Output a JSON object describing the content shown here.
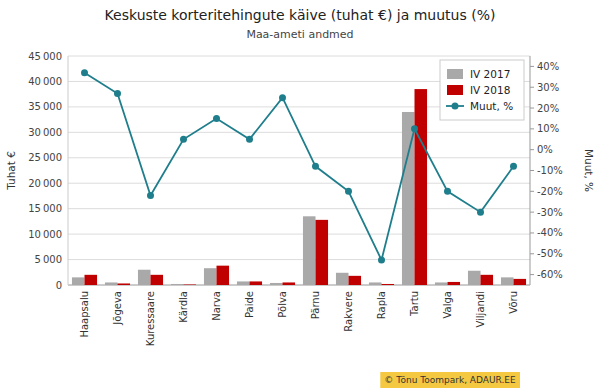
{
  "chart_data": {
    "type": "bar",
    "title": "Keskuste korteritehingute käive (tuhat €) ja muutus (%)",
    "subtitle": "Maa-ameti andmed",
    "ylabel": "Tuhat €",
    "y2label": "Muut, %",
    "annotations": [
      "© Tõnu Toompark, ADAUR.EE"
    ],
    "categories": [
      "Haapsalu",
      "Jõgeva",
      "Kuressaare",
      "Kärdla",
      "Narva",
      "Paide",
      "Põlva",
      "Pärnu",
      "Rakvere",
      "Rapla",
      "Tartu",
      "Valga",
      "Viljandi",
      "Võru"
    ],
    "series": [
      {
        "name": "IV 2017",
        "type": "bar",
        "color": "#A9A9A9",
        "values": [
          1500,
          500,
          3000,
          200,
          3300,
          700,
          400,
          13500,
          2400,
          500,
          34000,
          500,
          2800,
          1500
        ]
      },
      {
        "name": "IV 2018",
        "type": "bar",
        "color": "#C00000",
        "values": [
          2000,
          300,
          2000,
          100,
          3800,
          700,
          500,
          12800,
          1800,
          200,
          38500,
          600,
          2000,
          1200
        ]
      },
      {
        "name": "Muut, %",
        "type": "line",
        "axis": "y2",
        "color": "#1F7E8C",
        "marker": "circle",
        "values": [
          37,
          27,
          -22,
          5,
          15,
          5,
          25,
          -8,
          -20,
          -53,
          10,
          -20,
          -30,
          -8
        ]
      }
    ],
    "ylim": [
      0,
      45000
    ],
    "yticks": [
      0,
      {
        "value": 5000,
        "label": "5 000"
      },
      {
        "value": 10000,
        "label": "10 000"
      },
      {
        "value": 15000,
        "label": "15 000"
      },
      {
        "value": 20000,
        "label": "20 000"
      },
      {
        "value": 25000,
        "label": "25 000"
      },
      {
        "value": 30000,
        "label": "30 000"
      },
      {
        "value": 35000,
        "label": "35 000"
      },
      {
        "value": 40000,
        "label": "40 000"
      },
      {
        "value": 45000,
        "label": "45 000"
      }
    ],
    "y2lim": [
      -65,
      45
    ],
    "y2ticks": [
      {
        "value": -60,
        "label": "-60%"
      },
      {
        "value": -50,
        "label": "-50%"
      },
      {
        "value": -40,
        "label": "-40%"
      },
      {
        "value": -30,
        "label": "-30%"
      },
      {
        "value": -20,
        "label": "-20%"
      },
      {
        "value": -10,
        "label": "-10%"
      },
      {
        "value": 0,
        "label": "0%"
      },
      {
        "value": 10,
        "label": "10%"
      },
      {
        "value": 20,
        "label": "20%"
      },
      {
        "value": 30,
        "label": "30%"
      },
      {
        "value": 40,
        "label": "40%"
      }
    ],
    "grid": true,
    "legend": "upper right"
  }
}
